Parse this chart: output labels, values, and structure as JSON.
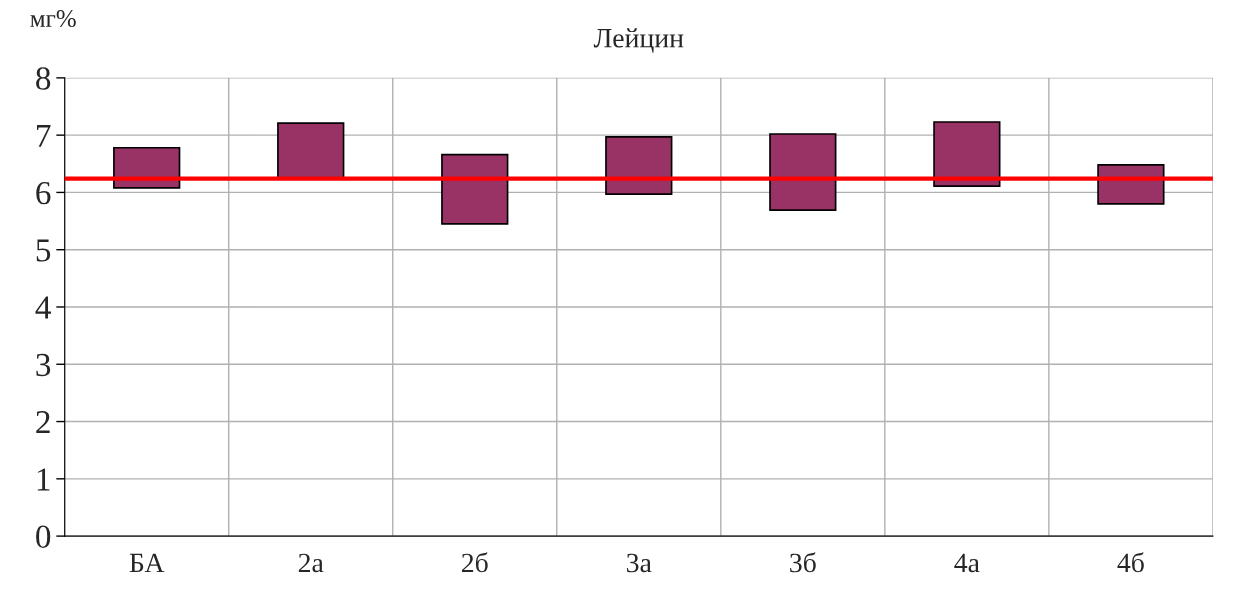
{
  "chart_data": {
    "type": "bar",
    "title": "Лейцин",
    "ylabel": "мг%",
    "categories": [
      "БА",
      "2а",
      "2б",
      "3а",
      "3б",
      "4а",
      "4б"
    ],
    "base": [
      6.08,
      6.25,
      5.45,
      5.97,
      5.69,
      6.11,
      5.8
    ],
    "values": [
      0.7,
      0.96,
      1.21,
      1.0,
      1.33,
      1.12,
      0.68
    ],
    "color": "#993366",
    "ylim": [
      0,
      8
    ],
    "yticks": [
      0,
      1,
      2,
      3,
      4,
      5,
      6,
      7,
      8
    ],
    "grid": true,
    "ref_lines": [
      {
        "axis": "y",
        "value": 6.24,
        "color": "#ff0000"
      }
    ]
  }
}
